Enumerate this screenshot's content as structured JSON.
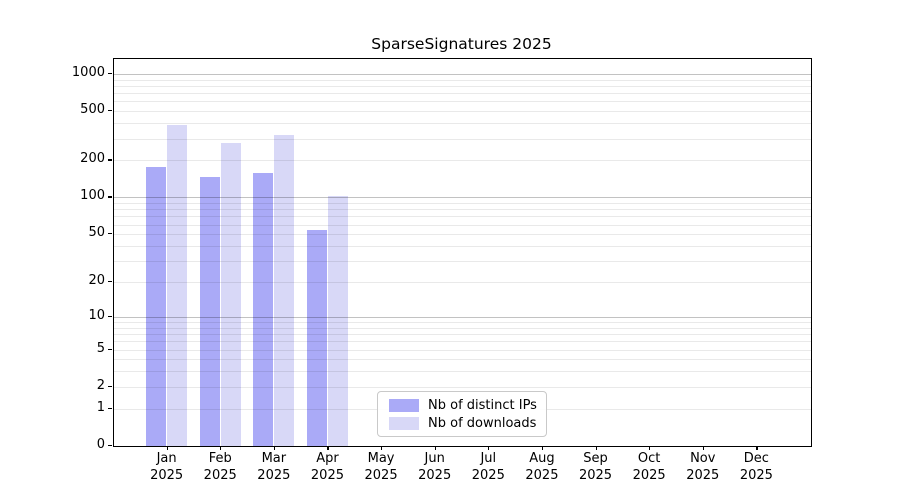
{
  "title": "SparseSignatures 2025",
  "chart_data": {
    "type": "bar",
    "title": "SparseSignatures 2025",
    "categories": [
      "Jan 2025",
      "Feb 2025",
      "Mar 2025",
      "Apr 2025",
      "May 2025",
      "Jun 2025",
      "Jul 2025",
      "Aug 2025",
      "Sep 2025",
      "Oct 2025",
      "Nov 2025",
      "Dec 2025"
    ],
    "x_tick_lines": [
      [
        "Jan",
        "2025"
      ],
      [
        "Feb",
        "2025"
      ],
      [
        "Mar",
        "2025"
      ],
      [
        "Apr",
        "2025"
      ],
      [
        "May",
        "2025"
      ],
      [
        "Jun",
        "2025"
      ],
      [
        "Jul",
        "2025"
      ],
      [
        "Aug",
        "2025"
      ],
      [
        "Sep",
        "2025"
      ],
      [
        "Oct",
        "2025"
      ],
      [
        "Nov",
        "2025"
      ],
      [
        "Dec",
        "2025"
      ]
    ],
    "series": [
      {
        "name": "Nb of distinct IPs",
        "color": "#aaaaf7",
        "values": [
          178,
          146,
          157,
          54,
          0,
          0,
          0,
          0,
          0,
          0,
          0,
          0
        ]
      },
      {
        "name": "Nb of downloads",
        "color": "#d8d8f7",
        "values": [
          390,
          278,
          320,
          103,
          0,
          0,
          0,
          0,
          0,
          0,
          0,
          0
        ]
      }
    ],
    "yscale": "log1p",
    "y_ticks": [
      0,
      1,
      2,
      5,
      10,
      20,
      50,
      100,
      200,
      500,
      1000
    ],
    "ylim": [
      0,
      1320
    ],
    "xlabel": "",
    "ylabel": "",
    "grid": true,
    "legend_position": "lower-center-inside",
    "colors": {
      "grid_minor": "rgba(0,0,0,0.085)",
      "grid_major": "rgba(0,0,0,0.24)",
      "spine": "#000000",
      "background": "#ffffff"
    }
  }
}
